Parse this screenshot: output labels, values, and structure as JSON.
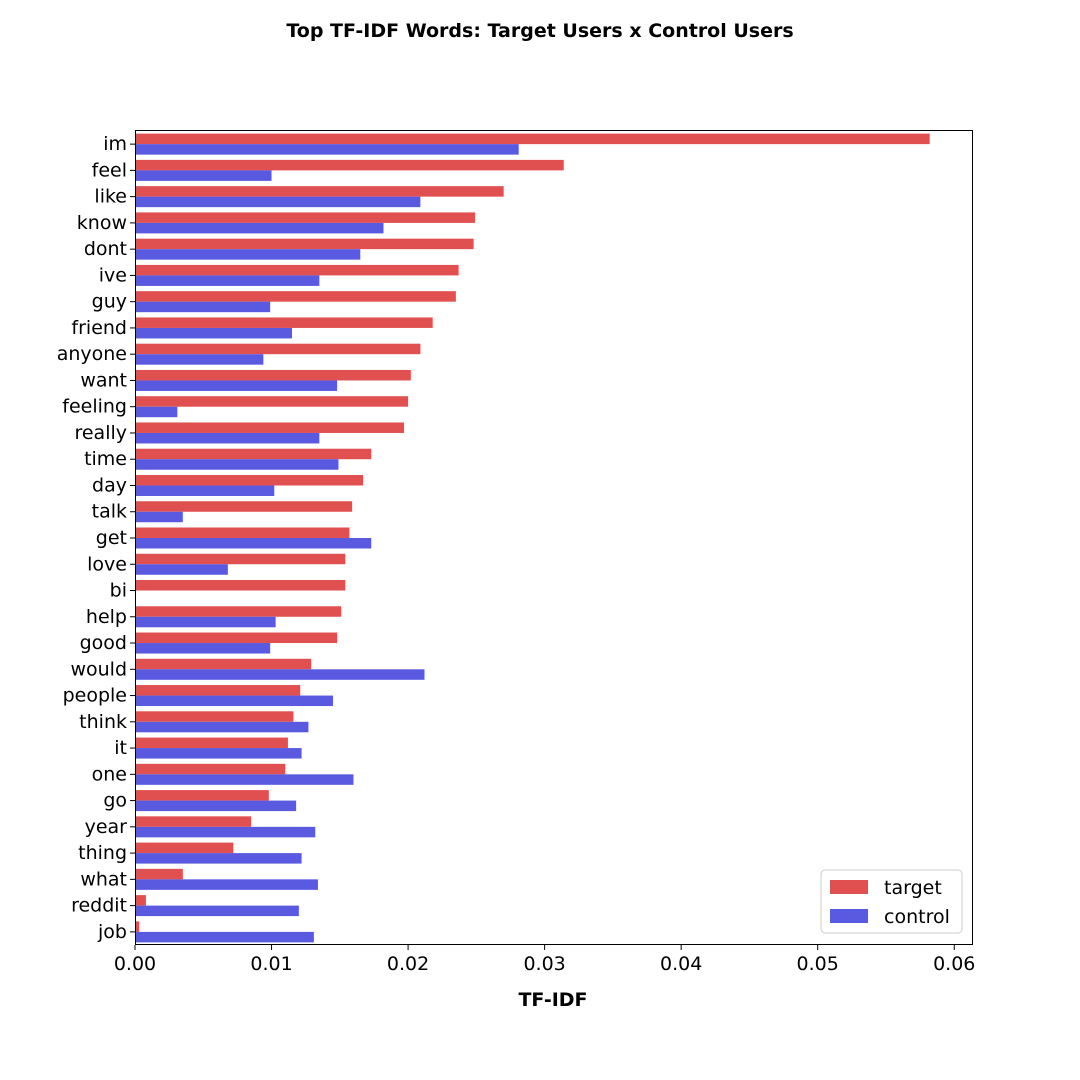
{
  "chart_data": {
    "type": "bar",
    "orientation": "horizontal",
    "title": "Top TF-IDF Words: Target Users x Control Users",
    "xlabel": "TF-IDF",
    "ylabel": "",
    "xlim": [
      0,
      0.0613
    ],
    "xticks": [
      0.0,
      0.01,
      0.02,
      0.03,
      0.04,
      0.05,
      0.06
    ],
    "xtick_labels": [
      "0.00",
      "0.01",
      "0.02",
      "0.03",
      "0.04",
      "0.05",
      "0.06"
    ],
    "grid": false,
    "legend_position": "bottom-right",
    "categories": [
      "im",
      "feel",
      "like",
      "know",
      "dont",
      "ive",
      "guy",
      "friend",
      "anyone",
      "want",
      "feeling",
      "really",
      "time",
      "day",
      "talk",
      "get",
      "love",
      "bi",
      "help",
      "good",
      "would",
      "people",
      "think",
      "it",
      "one",
      "go",
      "year",
      "thing",
      "what",
      "reddit",
      "job"
    ],
    "series": [
      {
        "name": "target",
        "color": "#e15050",
        "values": [
          0.0582,
          0.0314,
          0.027,
          0.0249,
          0.0248,
          0.0237,
          0.0235,
          0.0218,
          0.0209,
          0.0202,
          0.02,
          0.0197,
          0.0173,
          0.0167,
          0.0159,
          0.0157,
          0.0154,
          0.0154,
          0.0151,
          0.0148,
          0.0129,
          0.0121,
          0.0116,
          0.0112,
          0.011,
          0.0098,
          0.0085,
          0.0072,
          0.0035,
          0.0008,
          0.0003
        ]
      },
      {
        "name": "control",
        "color": "#5a5ae1",
        "values": [
          0.0281,
          0.01,
          0.0209,
          0.0182,
          0.0165,
          0.0135,
          0.0099,
          0.0115,
          0.0094,
          0.0148,
          0.0031,
          0.0135,
          0.0149,
          0.0102,
          0.0035,
          0.0173,
          0.0068,
          0.0,
          0.0103,
          0.0099,
          0.0212,
          0.0145,
          0.0127,
          0.0122,
          0.016,
          0.0118,
          0.0132,
          0.0122,
          0.0134,
          0.012,
          0.0131
        ]
      }
    ]
  }
}
